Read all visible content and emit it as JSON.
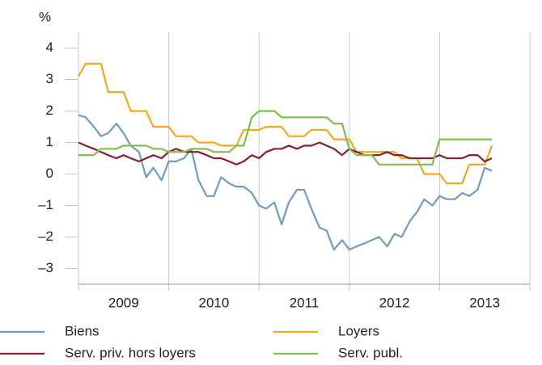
{
  "chart_data": {
    "type": "line",
    "y_unit": "%",
    "x": [
      2009.0,
      2009.08,
      2009.17,
      2009.25,
      2009.33,
      2009.42,
      2009.5,
      2009.58,
      2009.67,
      2009.75,
      2009.83,
      2009.92,
      2010.0,
      2010.08,
      2010.17,
      2010.25,
      2010.33,
      2010.42,
      2010.5,
      2010.58,
      2010.67,
      2010.75,
      2010.83,
      2010.92,
      2011.0,
      2011.08,
      2011.17,
      2011.25,
      2011.33,
      2011.42,
      2011.5,
      2011.58,
      2011.67,
      2011.75,
      2011.83,
      2011.92,
      2012.0,
      2012.08,
      2012.17,
      2012.25,
      2012.33,
      2012.42,
      2012.5,
      2012.58,
      2012.67,
      2012.75,
      2012.83,
      2012.92,
      2013.0,
      2013.08,
      2013.17,
      2013.25,
      2013.33,
      2013.42,
      2013.5,
      2013.58
    ],
    "xlim": [
      2009,
      2014
    ],
    "xgrid": [
      2009,
      2010,
      2011,
      2012,
      2013,
      2014
    ],
    "xticks": [
      {
        "value": 2009.5,
        "label": "2009"
      },
      {
        "value": 2010.5,
        "label": "2010"
      },
      {
        "value": 2011.5,
        "label": "2011"
      },
      {
        "value": 2012.5,
        "label": "2012"
      },
      {
        "value": 2013.5,
        "label": "2013"
      }
    ],
    "ylim": [
      -3.5,
      4.5
    ],
    "yticks": [
      {
        "value": -3,
        "label": "–3"
      },
      {
        "value": -2,
        "label": "–2"
      },
      {
        "value": -1,
        "label": "–1"
      },
      0,
      1,
      2,
      3,
      4
    ],
    "grid": "x",
    "series": [
      {
        "name": "Biens",
        "color": "#6f9cbf",
        "values": [
          1.87,
          1.8,
          1.5,
          1.2,
          1.3,
          1.6,
          1.3,
          0.9,
          0.7,
          -0.1,
          0.2,
          -0.2,
          0.4,
          0.4,
          0.5,
          0.8,
          -0.2,
          -0.7,
          -0.7,
          -0.1,
          -0.3,
          -0.4,
          -0.4,
          -0.6,
          -1.0,
          -1.1,
          -0.9,
          -1.6,
          -0.9,
          -0.5,
          -0.5,
          -1.1,
          -1.7,
          -1.8,
          -2.4,
          -2.1,
          -2.4,
          -2.3,
          -2.2,
          -2.1,
          -2.0,
          -2.3,
          -1.9,
          -2.0,
          -1.5,
          -1.2,
          -0.8,
          -1.0,
          -0.7,
          -0.8,
          -0.8,
          -0.6,
          -0.7,
          -0.5,
          0.2,
          0.1
        ]
      },
      {
        "name": "Loyers",
        "color": "#f4a71f",
        "values": [
          3.1,
          3.5,
          3.5,
          3.5,
          2.6,
          2.6,
          2.6,
          2.0,
          2.0,
          2.0,
          1.5,
          1.5,
          1.5,
          1.2,
          1.2,
          1.2,
          1.0,
          1.0,
          1.0,
          0.9,
          0.9,
          0.9,
          1.4,
          1.4,
          1.4,
          1.5,
          1.5,
          1.5,
          1.2,
          1.2,
          1.2,
          1.4,
          1.4,
          1.4,
          1.1,
          1.1,
          1.1,
          0.7,
          0.7,
          0.7,
          0.7,
          0.7,
          0.7,
          0.5,
          0.5,
          0.5,
          0.0,
          0.0,
          0.0,
          -0.3,
          -0.3,
          -0.3,
          0.3,
          0.3,
          0.3,
          0.9
        ]
      },
      {
        "name": "Serv. priv. hors loyers",
        "color": "#8c1c2e",
        "values": [
          1.0,
          0.9,
          0.8,
          0.7,
          0.6,
          0.5,
          0.6,
          0.5,
          0.4,
          0.5,
          0.6,
          0.5,
          0.7,
          0.8,
          0.7,
          0.7,
          0.7,
          0.6,
          0.5,
          0.5,
          0.4,
          0.3,
          0.4,
          0.6,
          0.5,
          0.7,
          0.8,
          0.8,
          0.9,
          0.8,
          0.9,
          0.9,
          1.0,
          0.9,
          0.8,
          0.6,
          0.8,
          0.7,
          0.6,
          0.6,
          0.6,
          0.7,
          0.6,
          0.6,
          0.5,
          0.5,
          0.5,
          0.5,
          0.6,
          0.5,
          0.5,
          0.5,
          0.6,
          0.6,
          0.4,
          0.5
        ]
      },
      {
        "name": "Serv. publ.",
        "color": "#7fbf4f",
        "values": [
          0.6,
          0.6,
          0.6,
          0.8,
          0.8,
          0.8,
          0.9,
          0.9,
          0.9,
          0.9,
          0.8,
          0.8,
          0.7,
          0.7,
          0.7,
          0.8,
          0.8,
          0.8,
          0.7,
          0.7,
          0.7,
          0.9,
          0.9,
          1.8,
          2.0,
          2.0,
          2.0,
          1.8,
          1.8,
          1.8,
          1.8,
          1.8,
          1.8,
          1.8,
          1.6,
          1.6,
          0.8,
          0.6,
          0.6,
          0.6,
          0.3,
          0.3,
          0.3,
          0.3,
          0.3,
          0.3,
          0.3,
          0.3,
          1.1,
          1.1,
          1.1,
          1.1,
          1.1,
          1.1,
          1.1,
          1.1
        ]
      }
    ]
  }
}
